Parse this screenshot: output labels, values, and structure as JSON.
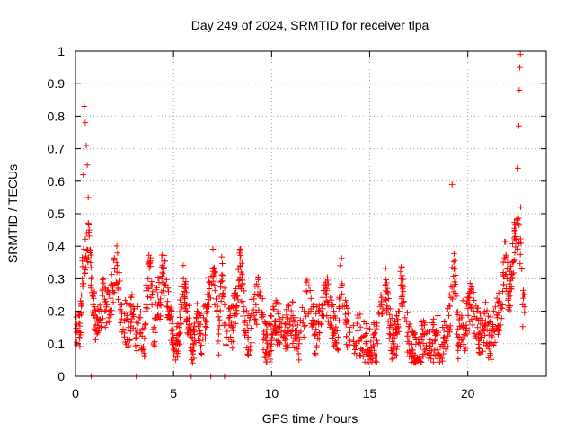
{
  "chart_data": {
    "type": "scatter",
    "title": "Day 249 of 2024, SRMTID for receiver tlpa",
    "xlabel": "GPS time / hours",
    "ylabel": "SRMTID / TECUs",
    "xlim": [
      0,
      24
    ],
    "ylim": [
      0,
      1
    ],
    "xticks": [
      0,
      5,
      10,
      15,
      20
    ],
    "xtick_labels": [
      "0",
      "5",
      "10",
      "15",
      "20"
    ],
    "yticks": [
      0,
      0.1,
      0.2,
      0.3,
      0.4,
      0.5,
      0.6,
      0.7,
      0.8,
      0.9,
      1
    ],
    "ytick_labels": [
      "0",
      "0.1",
      "0.2",
      "0.3",
      "0.4",
      "0.5",
      "0.6",
      "0.7",
      "0.8",
      "0.9",
      "1"
    ],
    "grid": true,
    "marker": "+",
    "color": "#ff0000",
    "series": [
      {
        "name": "SRMTID",
        "points": [
          [
            0.0,
            0.17
          ],
          [
            0.1,
            0.14
          ],
          [
            0.2,
            0.12
          ],
          [
            0.3,
            0.19
          ],
          [
            0.35,
            0.3
          ],
          [
            0.4,
            0.62
          ],
          [
            0.45,
            0.83
          ],
          [
            0.5,
            0.78
          ],
          [
            0.55,
            0.71
          ],
          [
            0.6,
            0.65
          ],
          [
            0.65,
            0.55
          ],
          [
            0.7,
            0.45
          ],
          [
            0.75,
            0.38
          ],
          [
            0.8,
            0.3
          ],
          [
            0.85,
            0.25
          ],
          [
            0.9,
            0.22
          ],
          [
            1.0,
            0.18
          ],
          [
            1.1,
            0.13
          ],
          [
            1.2,
            0.2
          ],
          [
            1.3,
            0.15
          ],
          [
            1.4,
            0.25
          ],
          [
            1.5,
            0.2
          ],
          [
            1.6,
            0.22
          ],
          [
            1.7,
            0.18
          ],
          [
            1.8,
            0.24
          ],
          [
            1.9,
            0.28
          ],
          [
            2.0,
            0.33
          ],
          [
            2.1,
            0.35
          ],
          [
            2.2,
            0.27
          ],
          [
            2.3,
            0.22
          ],
          [
            2.5,
            0.17
          ],
          [
            2.7,
            0.15
          ],
          [
            2.9,
            0.19
          ],
          [
            3.1,
            0.13
          ],
          [
            3.3,
            0.18
          ],
          [
            3.5,
            0.07
          ],
          [
            3.6,
            0.22
          ],
          [
            3.7,
            0.3
          ],
          [
            3.8,
            0.35
          ],
          [
            3.9,
            0.22
          ],
          [
            4.0,
            0.15
          ],
          [
            4.1,
            0.18
          ],
          [
            4.2,
            0.25
          ],
          [
            4.3,
            0.22
          ],
          [
            4.4,
            0.3
          ],
          [
            4.5,
            0.33
          ],
          [
            4.6,
            0.28
          ],
          [
            4.7,
            0.23
          ],
          [
            4.8,
            0.18
          ],
          [
            4.9,
            0.14
          ],
          [
            5.0,
            0.12
          ],
          [
            5.1,
            0.05
          ],
          [
            5.2,
            0.1
          ],
          [
            5.3,
            0.15
          ],
          [
            5.4,
            0.22
          ],
          [
            5.5,
            0.3
          ],
          [
            5.6,
            0.27
          ],
          [
            5.7,
            0.2
          ],
          [
            5.8,
            0.16
          ],
          [
            5.9,
            0.12
          ],
          [
            6.0,
            0.1
          ],
          [
            6.2,
            0.2
          ],
          [
            6.4,
            0.13
          ],
          [
            6.6,
            0.17
          ],
          [
            6.8,
            0.25
          ],
          [
            7.0,
            0.33
          ],
          [
            7.1,
            0.28
          ],
          [
            7.2,
            0.2
          ],
          [
            7.3,
            0.13
          ],
          [
            7.4,
            0.29
          ],
          [
            7.5,
            0.31
          ],
          [
            7.6,
            0.22
          ],
          [
            7.7,
            0.12
          ],
          [
            7.8,
            0.18
          ],
          [
            8.0,
            0.15
          ],
          [
            8.2,
            0.25
          ],
          [
            8.4,
            0.34
          ],
          [
            8.6,
            0.2
          ],
          [
            8.8,
            0.12
          ],
          [
            9.0,
            0.17
          ],
          [
            9.2,
            0.22
          ],
          [
            9.4,
            0.26
          ],
          [
            9.6,
            0.13
          ],
          [
            9.8,
            0.09
          ],
          [
            10.0,
            0.13
          ],
          [
            10.2,
            0.17
          ],
          [
            10.4,
            0.15
          ],
          [
            10.6,
            0.12
          ],
          [
            10.8,
            0.15
          ],
          [
            11.0,
            0.18
          ],
          [
            11.2,
            0.14
          ],
          [
            11.4,
            0.1
          ],
          [
            11.6,
            0.17
          ],
          [
            11.8,
            0.26
          ],
          [
            12.0,
            0.2
          ],
          [
            12.2,
            0.13
          ],
          [
            12.4,
            0.16
          ],
          [
            12.6,
            0.22
          ],
          [
            12.8,
            0.25
          ],
          [
            13.0,
            0.18
          ],
          [
            13.2,
            0.14
          ],
          [
            13.4,
            0.12
          ],
          [
            13.5,
            0.34
          ],
          [
            13.6,
            0.28
          ],
          [
            13.8,
            0.16
          ],
          [
            14.0,
            0.11
          ],
          [
            14.2,
            0.09
          ],
          [
            14.4,
            0.14
          ],
          [
            14.6,
            0.12
          ],
          [
            14.8,
            0.1
          ],
          [
            15.0,
            0.08
          ],
          [
            15.2,
            0.12
          ],
          [
            15.4,
            0.1
          ],
          [
            15.6,
            0.22
          ],
          [
            15.8,
            0.28
          ],
          [
            16.0,
            0.15
          ],
          [
            16.2,
            0.1
          ],
          [
            16.4,
            0.13
          ],
          [
            16.6,
            0.3
          ],
          [
            16.8,
            0.18
          ],
          [
            17.0,
            0.1
          ],
          [
            17.2,
            0.08
          ],
          [
            17.4,
            0.05
          ],
          [
            17.6,
            0.09
          ],
          [
            17.8,
            0.13
          ],
          [
            18.0,
            0.07
          ],
          [
            18.2,
            0.1
          ],
          [
            18.4,
            0.14
          ],
          [
            18.6,
            0.09
          ],
          [
            18.8,
            0.12
          ],
          [
            19.0,
            0.15
          ],
          [
            19.2,
            0.59
          ],
          [
            19.3,
            0.33
          ],
          [
            19.5,
            0.12
          ],
          [
            19.7,
            0.18
          ],
          [
            19.9,
            0.14
          ],
          [
            20.1,
            0.22
          ],
          [
            20.3,
            0.2
          ],
          [
            20.5,
            0.15
          ],
          [
            20.7,
            0.12
          ],
          [
            20.9,
            0.17
          ],
          [
            21.1,
            0.1
          ],
          [
            21.3,
            0.14
          ],
          [
            21.5,
            0.18
          ],
          [
            21.7,
            0.21
          ],
          [
            21.9,
            0.36
          ],
          [
            22.0,
            0.3
          ],
          [
            22.1,
            0.25
          ],
          [
            22.2,
            0.3
          ],
          [
            22.3,
            0.35
          ],
          [
            22.4,
            0.42
          ],
          [
            22.5,
            0.48
          ],
          [
            22.55,
            0.64
          ],
          [
            22.6,
            0.77
          ],
          [
            22.62,
            0.88
          ],
          [
            22.65,
            0.95
          ],
          [
            22.68,
            0.99
          ],
          [
            22.7,
            0.52
          ],
          [
            22.75,
            0.33
          ],
          [
            22.8,
            0.22
          ],
          [
            22.85,
            0.25
          ],
          [
            0.8,
            0.0
          ],
          [
            3.1,
            0.0
          ],
          [
            3.6,
            0.0
          ],
          [
            5.9,
            0.0
          ],
          [
            6.9,
            0.0
          ],
          [
            7.6,
            0.0
          ]
        ]
      }
    ],
    "noise_seed": 20240905
  }
}
